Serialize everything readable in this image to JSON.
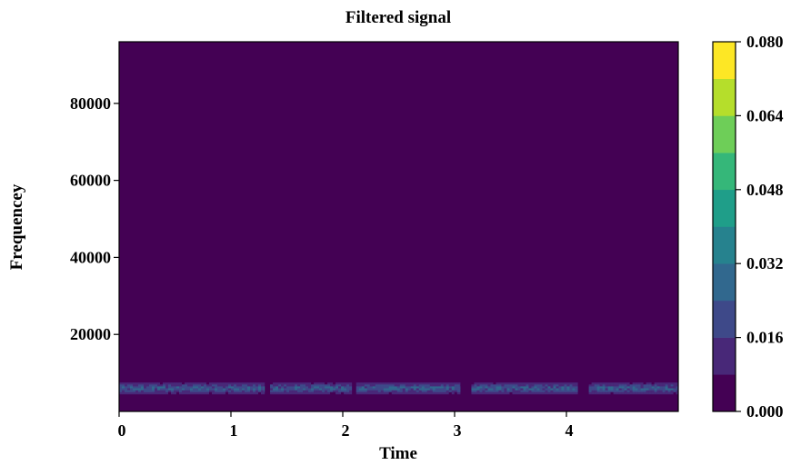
{
  "chart_data": {
    "type": "heatmap",
    "title": "Filtered  signal",
    "xlabel": "Time",
    "ylabel": "Frequencey",
    "xlim": [
      0,
      5.0
    ],
    "ylim": [
      0,
      96000
    ],
    "x_ticks": [
      0,
      1,
      2,
      3,
      4
    ],
    "x_tick_labels": [
      "0",
      "1",
      "2",
      "3",
      "4"
    ],
    "y_ticks": [
      20000,
      40000,
      60000,
      80000
    ],
    "y_tick_labels": [
      "20000",
      "40000",
      "60000",
      "80000"
    ],
    "colorbar": {
      "min": 0.0,
      "max": 0.08,
      "levels": 10,
      "ticks": [
        0.0,
        0.016,
        0.032,
        0.048,
        0.064,
        0.08
      ],
      "tick_labels": [
        "0.000",
        "0.016",
        "0.032",
        "0.048",
        "0.064",
        "0.080"
      ],
      "colors": [
        "#440154",
        "#482878",
        "#3e4989",
        "#31688e",
        "#26828e",
        "#1f9e89",
        "#35b779",
        "#6ece58",
        "#b5de2b",
        "#fde725"
      ]
    },
    "background_value": 0.0,
    "energy_band": {
      "freq_low": 4500,
      "freq_high": 7500,
      "peak_value": 0.03
    },
    "active_segments": [
      {
        "t_start": 0.0,
        "t_end": 1.3
      },
      {
        "t_start": 1.35,
        "t_end": 2.08
      },
      {
        "t_start": 2.12,
        "t_end": 3.05
      },
      {
        "t_start": 3.15,
        "t_end": 4.1
      },
      {
        "t_start": 4.2,
        "t_end": 5.0
      }
    ],
    "legend": "none",
    "grid": false
  }
}
